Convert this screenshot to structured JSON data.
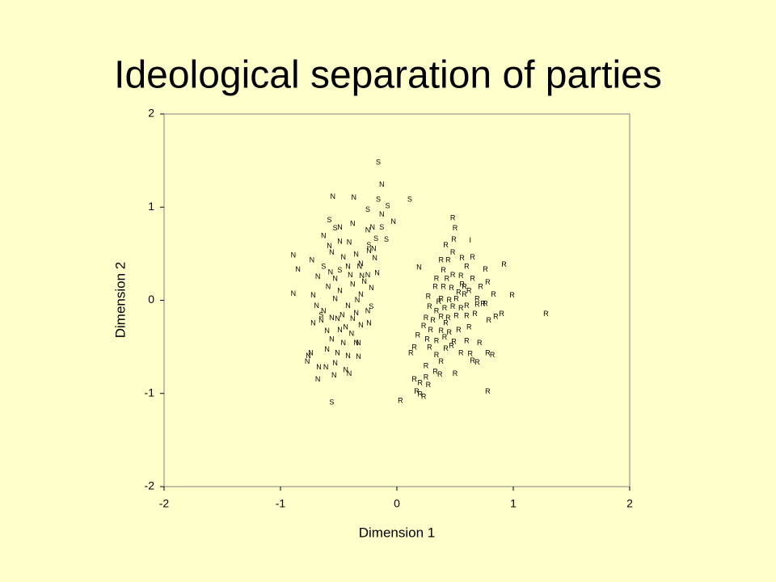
{
  "chart_data": {
    "type": "scatter",
    "title": "Ideological separation of parties",
    "x_label": "Dimension 1",
    "y_label": "Dimension 2",
    "xlim": [
      -2,
      2
    ],
    "ylim": [
      -2,
      2
    ],
    "xticks": [
      -2,
      -1,
      0,
      1,
      2
    ],
    "yticks": [
      -2,
      -1,
      0,
      1,
      2
    ],
    "series": [
      {
        "name": "N",
        "color": "#000000",
        "x": [
          -0.55,
          -0.37,
          -0.13,
          -0.13,
          -0.03,
          -0.21,
          -0.25,
          -0.49,
          -0.38,
          -0.63,
          -0.49,
          -0.41,
          -0.58,
          -0.89,
          -0.73,
          -0.56,
          -0.46,
          -0.35,
          -0.24,
          -0.19,
          -0.85,
          -0.68,
          -0.57,
          -0.42,
          -0.31,
          -0.25,
          -0.17,
          0.19,
          -0.89,
          -0.72,
          -0.59,
          -0.49,
          -0.38,
          -0.28,
          -0.22,
          -0.69,
          -0.63,
          -0.53,
          -0.42,
          -0.34,
          -0.25,
          -0.72,
          -0.65,
          -0.56,
          -0.47,
          -0.38,
          -0.31,
          -0.24,
          -0.6,
          -0.49,
          -0.39,
          -0.56,
          -0.46,
          -0.35,
          -0.74,
          -0.6,
          -0.51,
          -0.42,
          -0.33,
          -0.77,
          -0.67,
          -0.61,
          -0.53,
          -0.44,
          -0.68,
          -0.54,
          -0.41,
          -0.33,
          -0.76,
          -0.51,
          -0.44,
          -0.35,
          -0.31,
          -0.3,
          -0.4,
          -0.53,
          -0.32,
          -0.2
        ],
        "y": [
          1.11,
          1.1,
          1.24,
          0.92,
          0.84,
          0.78,
          0.75,
          0.78,
          0.82,
          0.69,
          0.63,
          0.62,
          0.58,
          0.48,
          0.43,
          0.51,
          0.46,
          0.49,
          0.53,
          0.45,
          0.33,
          0.25,
          0.3,
          0.36,
          0.39,
          0.27,
          0.29,
          0.35,
          0.07,
          0.05,
          0.14,
          0.1,
          0.17,
          0.2,
          0.13,
          -0.06,
          -0.12,
          0.01,
          -0.06,
          0.0,
          -0.12,
          -0.25,
          -0.22,
          -0.19,
          -0.16,
          -0.2,
          -0.27,
          -0.25,
          -0.33,
          -0.32,
          -0.36,
          -0.42,
          -0.46,
          -0.46,
          -0.57,
          -0.53,
          -0.57,
          -0.6,
          -0.61,
          -0.66,
          -0.72,
          -0.72,
          -0.68,
          -0.75,
          -0.85,
          -0.81,
          -0.79,
          -0.46,
          -0.6,
          -0.2,
          -0.29,
          -0.14,
          0.06,
          0.26,
          0.27,
          0.23,
          0.36,
          0.55
        ]
      },
      {
        "name": "S",
        "color": "#000000",
        "x": [
          -0.16,
          -0.16,
          0.11,
          -0.08,
          -0.25,
          -0.58,
          -0.53,
          -0.13,
          -0.18,
          -0.09,
          -0.24,
          -0.63,
          -0.49,
          -0.56,
          -0.22,
          -0.65
        ],
        "y": [
          1.48,
          1.08,
          1.08,
          1.01,
          0.97,
          0.86,
          0.77,
          0.78,
          0.66,
          0.65,
          0.59,
          0.36,
          0.32,
          -1.1,
          -0.07,
          -0.16
        ]
      },
      {
        "name": "R",
        "color": "#000000",
        "x": [
          0.48,
          0.5,
          0.49,
          0.42,
          0.48,
          0.38,
          0.44,
          0.56,
          0.65,
          0.6,
          0.76,
          0.92,
          0.4,
          0.48,
          0.55,
          0.65,
          0.78,
          0.33,
          0.4,
          0.47,
          0.56,
          0.62,
          0.72,
          0.99,
          0.27,
          0.38,
          0.45,
          0.51,
          0.58,
          0.69,
          0.28,
          0.34,
          0.41,
          0.48,
          0.55,
          0.6,
          0.69,
          0.76,
          0.9,
          1.28,
          0.25,
          0.31,
          0.38,
          0.44,
          0.51,
          0.6,
          0.67,
          0.79,
          0.23,
          0.29,
          0.38,
          0.45,
          0.53,
          0.62,
          0.18,
          0.26,
          0.34,
          0.41,
          0.49,
          0.6,
          0.71,
          0.12,
          0.15,
          0.28,
          0.34,
          0.42,
          0.55,
          0.63,
          0.78,
          0.82,
          0.65,
          0.69,
          0.25,
          0.33,
          0.37,
          0.5,
          0.25,
          0.15,
          0.2,
          0.27,
          0.17,
          0.2,
          0.23,
          0.03,
          0.78,
          0.38,
          0.47,
          0.83,
          0.53,
          0.58,
          0.43,
          0.34,
          0.74,
          0.85,
          0.42,
          0.36
        ],
        "y": [
          0.88,
          0.77,
          0.65,
          0.59,
          0.51,
          0.43,
          0.43,
          0.45,
          0.46,
          0.36,
          0.33,
          0.38,
          0.32,
          0.27,
          0.26,
          0.23,
          0.19,
          0.14,
          0.14,
          0.13,
          0.17,
          0.1,
          0.14,
          0.05,
          0.04,
          0.01,
          0.0,
          0.01,
          0.06,
          0.01,
          -0.07,
          -0.12,
          -0.09,
          -0.07,
          -0.09,
          -0.06,
          -0.05,
          -0.04,
          -0.15,
          -0.15,
          -0.19,
          -0.22,
          -0.18,
          -0.19,
          -0.17,
          -0.17,
          -0.15,
          -0.22,
          -0.28,
          -0.32,
          -0.33,
          -0.35,
          -0.32,
          -0.29,
          -0.38,
          -0.42,
          -0.44,
          -0.4,
          -0.45,
          -0.44,
          -0.46,
          -0.57,
          -0.51,
          -0.51,
          -0.59,
          -0.52,
          -0.57,
          -0.58,
          -0.57,
          -0.59,
          -0.65,
          -0.67,
          -0.71,
          -0.77,
          -0.8,
          -0.79,
          -0.83,
          -0.85,
          -0.89,
          -0.91,
          -0.98,
          -1.01,
          -1.04,
          -1.08,
          -0.98,
          -0.66,
          -0.49,
          0.06,
          0.08,
          0.14,
          0.23,
          0.23,
          -0.04,
          -0.18,
          -0.25,
          -0.02
        ]
      },
      {
        "name": "I",
        "color": "#000000",
        "x": [
          0.63
        ],
        "y": [
          0.64
        ]
      }
    ]
  }
}
